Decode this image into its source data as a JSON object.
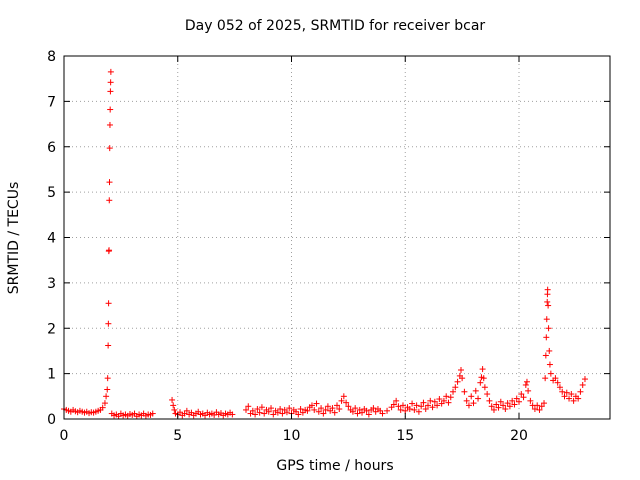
{
  "chart_data": {
    "type": "scatter",
    "title": "Day 052 of 2025, SRMTID for receiver bcar",
    "xlabel": "GPS time / hours",
    "ylabel": "SRMTID / TECUs",
    "xlim": [
      0,
      24
    ],
    "ylim": [
      0,
      8
    ],
    "xticks": [
      0,
      5,
      10,
      15,
      20
    ],
    "yticks": [
      0,
      1,
      2,
      3,
      4,
      5,
      6,
      7,
      8
    ],
    "xtick_labels": [
      "0",
      "5",
      "10",
      "15",
      "20"
    ],
    "ytick_labels": [
      "0",
      "1",
      "2",
      "3",
      "4",
      "5",
      "6",
      "7",
      "8"
    ],
    "grid": true,
    "marker": "+",
    "color": "#ff0000",
    "series": [
      {
        "name": "SRMTID",
        "points": [
          [
            0.0,
            0.22
          ],
          [
            0.1,
            0.2
          ],
          [
            0.2,
            0.18
          ],
          [
            0.3,
            0.16
          ],
          [
            0.4,
            0.2
          ],
          [
            0.5,
            0.17
          ],
          [
            0.6,
            0.15
          ],
          [
            0.7,
            0.18
          ],
          [
            0.8,
            0.16
          ],
          [
            0.9,
            0.14
          ],
          [
            1.0,
            0.16
          ],
          [
            1.1,
            0.13
          ],
          [
            1.2,
            0.15
          ],
          [
            1.3,
            0.14
          ],
          [
            1.4,
            0.16
          ],
          [
            1.5,
            0.18
          ],
          [
            1.6,
            0.2
          ],
          [
            1.7,
            0.25
          ],
          [
            1.8,
            0.35
          ],
          [
            1.85,
            0.5
          ],
          [
            1.9,
            0.65
          ],
          [
            1.92,
            0.9
          ],
          [
            1.94,
            1.62
          ],
          [
            1.95,
            2.1
          ],
          [
            1.96,
            2.55
          ],
          [
            1.97,
            3.7
          ],
          [
            1.98,
            3.72
          ],
          [
            1.99,
            4.82
          ],
          [
            2.0,
            5.22
          ],
          [
            2.01,
            5.97
          ],
          [
            2.02,
            6.48
          ],
          [
            2.03,
            6.82
          ],
          [
            2.04,
            7.22
          ],
          [
            2.05,
            7.42
          ],
          [
            2.06,
            7.65
          ],
          [
            2.1,
            0.12
          ],
          [
            2.2,
            0.08
          ],
          [
            2.3,
            0.1
          ],
          [
            2.4,
            0.06
          ],
          [
            2.5,
            0.12
          ],
          [
            2.6,
            0.08
          ],
          [
            2.7,
            0.1
          ],
          [
            2.8,
            0.07
          ],
          [
            2.9,
            0.11
          ],
          [
            3.0,
            0.09
          ],
          [
            3.1,
            0.12
          ],
          [
            3.2,
            0.06
          ],
          [
            3.3,
            0.1
          ],
          [
            3.4,
            0.08
          ],
          [
            3.5,
            0.12
          ],
          [
            3.6,
            0.07
          ],
          [
            3.7,
            0.1
          ],
          [
            3.8,
            0.09
          ],
          [
            3.9,
            0.12
          ],
          [
            4.75,
            0.42
          ],
          [
            4.8,
            0.3
          ],
          [
            4.85,
            0.2
          ],
          [
            4.9,
            0.12
          ],
          [
            5.0,
            0.1
          ],
          [
            5.1,
            0.15
          ],
          [
            5.2,
            0.08
          ],
          [
            5.3,
            0.12
          ],
          [
            5.4,
            0.18
          ],
          [
            5.5,
            0.1
          ],
          [
            5.6,
            0.14
          ],
          [
            5.7,
            0.08
          ],
          [
            5.8,
            0.12
          ],
          [
            5.9,
            0.16
          ],
          [
            6.0,
            0.1
          ],
          [
            6.1,
            0.12
          ],
          [
            6.2,
            0.08
          ],
          [
            6.3,
            0.14
          ],
          [
            6.4,
            0.1
          ],
          [
            6.5,
            0.12
          ],
          [
            6.6,
            0.09
          ],
          [
            6.7,
            0.15
          ],
          [
            6.8,
            0.1
          ],
          [
            6.9,
            0.13
          ],
          [
            7.0,
            0.08
          ],
          [
            7.1,
            0.12
          ],
          [
            7.2,
            0.1
          ],
          [
            7.3,
            0.14
          ],
          [
            7.4,
            0.1
          ],
          [
            8.0,
            0.2
          ],
          [
            8.1,
            0.28
          ],
          [
            8.2,
            0.12
          ],
          [
            8.3,
            0.18
          ],
          [
            8.4,
            0.1
          ],
          [
            8.5,
            0.22
          ],
          [
            8.6,
            0.14
          ],
          [
            8.7,
            0.26
          ],
          [
            8.8,
            0.12
          ],
          [
            8.9,
            0.2
          ],
          [
            9.0,
            0.16
          ],
          [
            9.1,
            0.24
          ],
          [
            9.2,
            0.1
          ],
          [
            9.3,
            0.18
          ],
          [
            9.4,
            0.14
          ],
          [
            9.5,
            0.22
          ],
          [
            9.6,
            0.12
          ],
          [
            9.7,
            0.2
          ],
          [
            9.8,
            0.15
          ],
          [
            9.9,
            0.24
          ],
          [
            10.0,
            0.12
          ],
          [
            10.1,
            0.2
          ],
          [
            10.2,
            0.16
          ],
          [
            10.3,
            0.1
          ],
          [
            10.4,
            0.22
          ],
          [
            10.5,
            0.14
          ],
          [
            10.6,
            0.2
          ],
          [
            10.7,
            0.18
          ],
          [
            10.8,
            0.26
          ],
          [
            10.9,
            0.3
          ],
          [
            11.0,
            0.2
          ],
          [
            11.1,
            0.34
          ],
          [
            11.2,
            0.16
          ],
          [
            11.3,
            0.24
          ],
          [
            11.4,
            0.12
          ],
          [
            11.5,
            0.2
          ],
          [
            11.6,
            0.28
          ],
          [
            11.7,
            0.18
          ],
          [
            11.8,
            0.24
          ],
          [
            11.9,
            0.14
          ],
          [
            12.0,
            0.3
          ],
          [
            12.1,
            0.22
          ],
          [
            12.2,
            0.4
          ],
          [
            12.3,
            0.5
          ],
          [
            12.4,
            0.36
          ],
          [
            12.5,
            0.28
          ],
          [
            12.6,
            0.2
          ],
          [
            12.7,
            0.16
          ],
          [
            12.8,
            0.24
          ],
          [
            12.9,
            0.12
          ],
          [
            13.0,
            0.2
          ],
          [
            13.1,
            0.14
          ],
          [
            13.2,
            0.22
          ],
          [
            13.3,
            0.18
          ],
          [
            13.4,
            0.1
          ],
          [
            13.5,
            0.2
          ],
          [
            13.6,
            0.24
          ],
          [
            13.7,
            0.16
          ],
          [
            13.8,
            0.22
          ],
          [
            13.9,
            0.18
          ],
          [
            14.0,
            0.12
          ],
          [
            14.2,
            0.18
          ],
          [
            14.4,
            0.26
          ],
          [
            14.5,
            0.32
          ],
          [
            14.6,
            0.4
          ],
          [
            14.7,
            0.28
          ],
          [
            14.8,
            0.2
          ],
          [
            14.9,
            0.3
          ],
          [
            15.0,
            0.18
          ],
          [
            15.1,
            0.26
          ],
          [
            15.2,
            0.22
          ],
          [
            15.3,
            0.34
          ],
          [
            15.4,
            0.2
          ],
          [
            15.5,
            0.3
          ],
          [
            15.6,
            0.16
          ],
          [
            15.7,
            0.28
          ],
          [
            15.8,
            0.36
          ],
          [
            15.9,
            0.22
          ],
          [
            16.0,
            0.3
          ],
          [
            16.1,
            0.4
          ],
          [
            16.2,
            0.26
          ],
          [
            16.3,
            0.38
          ],
          [
            16.4,
            0.3
          ],
          [
            16.5,
            0.44
          ],
          [
            16.6,
            0.34
          ],
          [
            16.7,
            0.4
          ],
          [
            16.8,
            0.5
          ],
          [
            16.9,
            0.36
          ],
          [
            17.0,
            0.48
          ],
          [
            17.1,
            0.6
          ],
          [
            17.2,
            0.7
          ],
          [
            17.3,
            0.82
          ],
          [
            17.4,
            0.95
          ],
          [
            17.45,
            1.08
          ],
          [
            17.5,
            0.9
          ],
          [
            17.6,
            0.6
          ],
          [
            17.7,
            0.4
          ],
          [
            17.8,
            0.3
          ],
          [
            17.9,
            0.5
          ],
          [
            18.0,
            0.35
          ],
          [
            18.1,
            0.62
          ],
          [
            18.2,
            0.45
          ],
          [
            18.3,
            0.8
          ],
          [
            18.35,
            0.92
          ],
          [
            18.4,
            1.1
          ],
          [
            18.45,
            0.9
          ],
          [
            18.5,
            0.7
          ],
          [
            18.6,
            0.55
          ],
          [
            18.7,
            0.4
          ],
          [
            18.8,
            0.28
          ],
          [
            18.9,
            0.2
          ],
          [
            19.0,
            0.32
          ],
          [
            19.1,
            0.25
          ],
          [
            19.2,
            0.38
          ],
          [
            19.3,
            0.3
          ],
          [
            19.4,
            0.22
          ],
          [
            19.5,
            0.35
          ],
          [
            19.6,
            0.28
          ],
          [
            19.7,
            0.4
          ],
          [
            19.8,
            0.32
          ],
          [
            19.9,
            0.45
          ],
          [
            20.0,
            0.38
          ],
          [
            20.1,
            0.55
          ],
          [
            20.2,
            0.48
          ],
          [
            20.3,
            0.75
          ],
          [
            20.35,
            0.82
          ],
          [
            20.4,
            0.62
          ],
          [
            20.5,
            0.4
          ],
          [
            20.6,
            0.3
          ],
          [
            20.7,
            0.22
          ],
          [
            20.8,
            0.3
          ],
          [
            20.9,
            0.2
          ],
          [
            21.0,
            0.28
          ],
          [
            21.1,
            0.35
          ],
          [
            21.15,
            0.9
          ],
          [
            21.18,
            1.4
          ],
          [
            21.2,
            1.8
          ],
          [
            21.22,
            2.2
          ],
          [
            21.24,
            2.58
          ],
          [
            21.25,
            2.75
          ],
          [
            21.26,
            2.85
          ],
          [
            21.28,
            2.5
          ],
          [
            21.3,
            2.0
          ],
          [
            21.33,
            1.5
          ],
          [
            21.36,
            1.2
          ],
          [
            21.4,
            1.0
          ],
          [
            21.5,
            0.85
          ],
          [
            21.6,
            0.9
          ],
          [
            21.7,
            0.8
          ],
          [
            21.8,
            0.7
          ],
          [
            21.9,
            0.6
          ],
          [
            22.0,
            0.5
          ],
          [
            22.1,
            0.58
          ],
          [
            22.2,
            0.45
          ],
          [
            22.3,
            0.55
          ],
          [
            22.4,
            0.4
          ],
          [
            22.5,
            0.5
          ],
          [
            22.6,
            0.45
          ],
          [
            22.7,
            0.6
          ],
          [
            22.8,
            0.75
          ],
          [
            22.9,
            0.88
          ]
        ]
      }
    ]
  }
}
